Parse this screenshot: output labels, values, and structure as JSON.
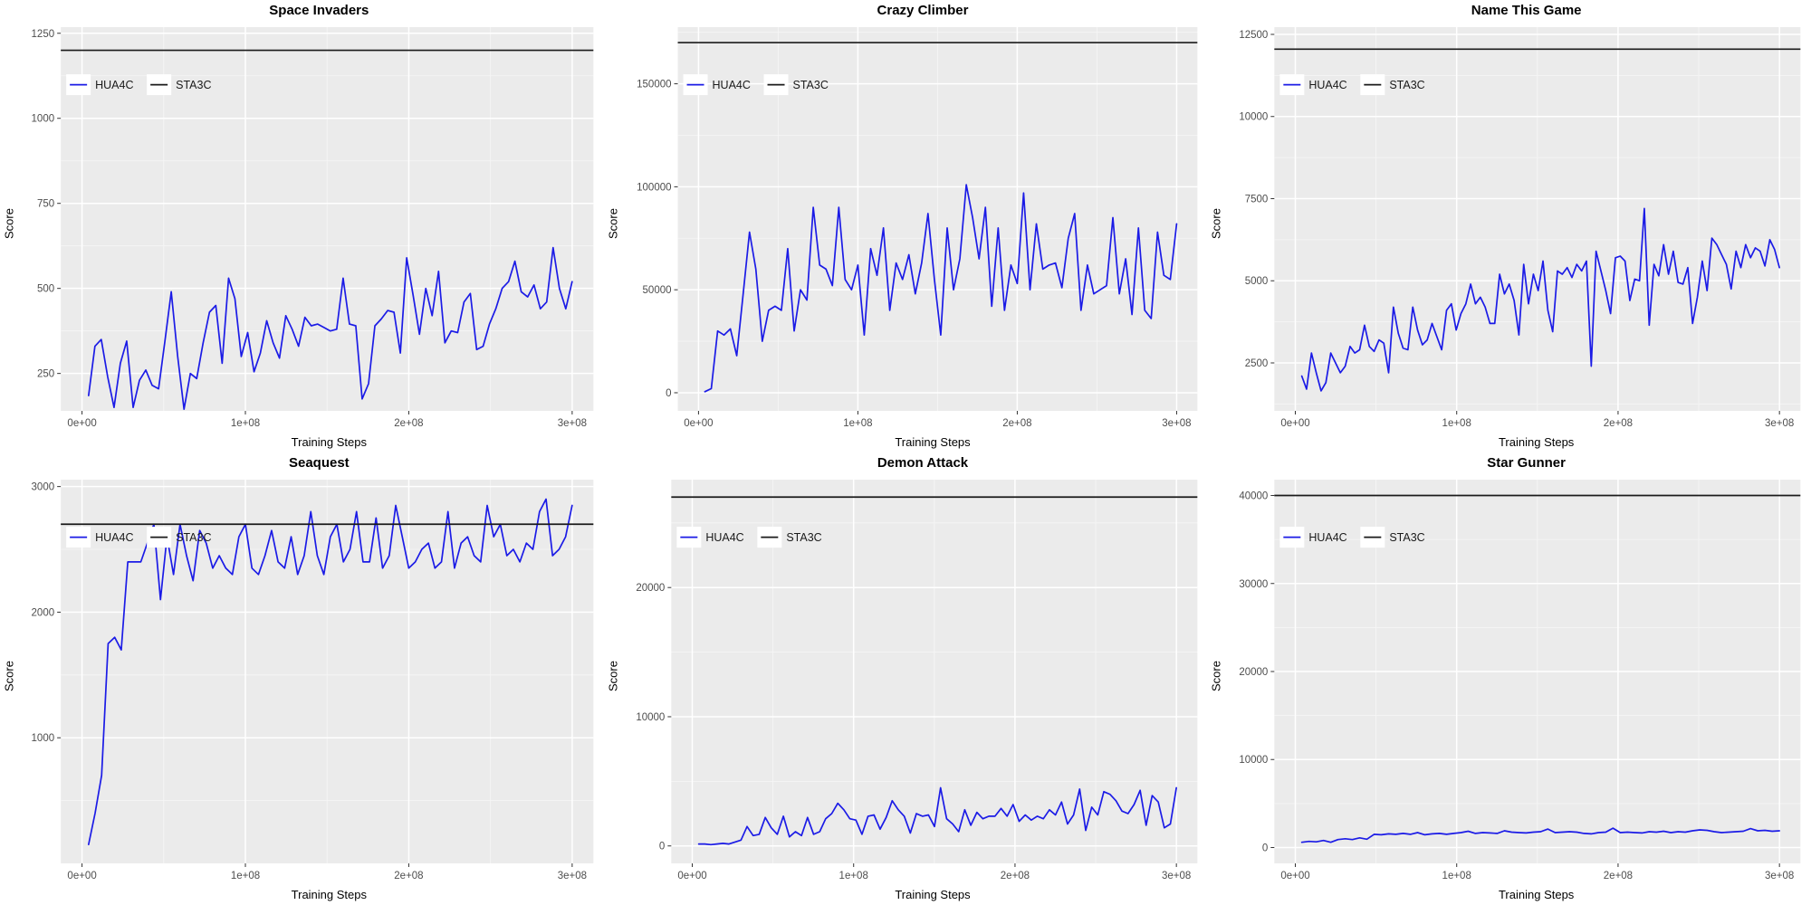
{
  "ui": {
    "x_axis_label": "Training Steps",
    "y_axis_label": "Score",
    "x_tick_values": [
      0,
      100000000,
      200000000,
      300000000
    ],
    "x_tick_labels": [
      "0e+00",
      "1e+08",
      "2e+08",
      "3e+08"
    ],
    "xlim": [
      -13000000,
      313000000
    ],
    "legend": [
      {
        "label": "HUA4C",
        "color": "#1b1be6"
      },
      {
        "label": "STA3C",
        "color": "#1a1a1a"
      }
    ],
    "colors": {
      "panel_background": "#EBEBEB",
      "grid_major": "#FFFFFF",
      "grid_minor": "#F6F6F6",
      "tick_text": "#4d4d4d",
      "tick_mark": "#333333",
      "hua4c_line": "#1b1be6",
      "sta3c_line": "#1a1a1a",
      "legend_key_fill": "#FFFFFF"
    }
  },
  "chart_data": [
    {
      "type": "line",
      "title": "Space Invaders",
      "xlabel": "Training Steps",
      "ylabel": "Score",
      "legend_position": "inside-top-left",
      "grid": true,
      "xlim": [
        -13000000,
        313000000
      ],
      "ylim": [
        140,
        1268
      ],
      "y_ticks": [
        250,
        500,
        750,
        1000,
        1250
      ],
      "y_tick_labels": [
        "250",
        "500",
        "750",
        "1000",
        "1250"
      ],
      "series": [
        {
          "name": "HUA4C",
          "kind": "curve",
          "x_start": 4000000,
          "x_end": 300000000,
          "values": [
            185,
            330,
            350,
            240,
            150,
            280,
            345,
            150,
            230,
            260,
            215,
            205,
            345,
            490,
            300,
            145,
            250,
            235,
            340,
            430,
            450,
            280,
            530,
            470,
            300,
            370,
            255,
            310,
            405,
            340,
            295,
            420,
            380,
            330,
            415,
            390,
            395,
            385,
            375,
            380,
            530,
            395,
            390,
            175,
            220,
            390,
            410,
            435,
            430,
            310,
            590,
            480,
            365,
            500,
            420,
            550,
            340,
            375,
            370,
            460,
            485,
            320,
            330,
            395,
            440,
            500,
            520,
            580,
            490,
            475,
            510,
            440,
            460,
            620,
            500,
            440,
            520
          ]
        },
        {
          "name": "STA3C",
          "kind": "baseline",
          "baseline": 1200
        }
      ]
    },
    {
      "type": "line",
      "title": "Crazy Climber",
      "xlabel": "Training Steps",
      "ylabel": "Score",
      "legend_position": "inside-top-left",
      "grid": true,
      "xlim": [
        -13000000,
        313000000
      ],
      "ylim": [
        -8800,
        177500
      ],
      "y_ticks": [
        0,
        50000,
        100000,
        150000
      ],
      "y_tick_labels": [
        "0",
        "50000",
        "100000",
        "150000"
      ],
      "series": [
        {
          "name": "HUA4C",
          "kind": "curve",
          "x_start": 4000000,
          "x_end": 300000000,
          "values": [
            500,
            2000,
            30000,
            28000,
            31000,
            18000,
            48000,
            78000,
            60000,
            25000,
            40000,
            42000,
            40000,
            70000,
            30000,
            50000,
            45000,
            90000,
            62000,
            60000,
            52000,
            90000,
            55000,
            50000,
            62000,
            28000,
            70000,
            57000,
            80000,
            40000,
            63000,
            55000,
            67000,
            48000,
            63000,
            87000,
            55000,
            28000,
            80000,
            50000,
            65000,
            101000,
            85000,
            65000,
            90000,
            42000,
            80000,
            40000,
            62000,
            53000,
            97000,
            50000,
            82000,
            60000,
            62000,
            63000,
            51000,
            75000,
            87000,
            40000,
            62000,
            48000,
            50000,
            52000,
            85000,
            48000,
            65000,
            38000,
            80000,
            40000,
            36000,
            78000,
            57000,
            55000,
            82000
          ]
        },
        {
          "name": "STA3C",
          "kind": "baseline",
          "baseline": 170000
        }
      ]
    },
    {
      "type": "line",
      "title": "Name This Game",
      "xlabel": "Training Steps",
      "ylabel": "Score",
      "legend_position": "inside-top-left",
      "grid": true,
      "xlim": [
        -13000000,
        313000000
      ],
      "ylim": [
        1040,
        12720
      ],
      "y_ticks": [
        2500,
        5000,
        7500,
        10000,
        12500
      ],
      "y_tick_labels": [
        "2500",
        "5000",
        "7500",
        "10000",
        "12500"
      ],
      "series": [
        {
          "name": "HUA4C",
          "kind": "curve",
          "x_start": 4000000,
          "x_end": 300000000,
          "values": [
            2100,
            1700,
            2800,
            2200,
            1650,
            1900,
            2800,
            2500,
            2200,
            2400,
            3000,
            2800,
            2900,
            3650,
            3000,
            2850,
            3200,
            3100,
            2200,
            4200,
            3400,
            2950,
            2900,
            4200,
            3500,
            3050,
            3200,
            3700,
            3300,
            2900,
            4100,
            4300,
            3500,
            4000,
            4300,
            4900,
            4300,
            4500,
            4200,
            3700,
            3700,
            5200,
            4600,
            4900,
            4400,
            3350,
            5500,
            4300,
            5200,
            4700,
            5600,
            4100,
            3450,
            5300,
            5200,
            5400,
            5100,
            5500,
            5300,
            5600,
            2400,
            5900,
            5300,
            4700,
            4000,
            5700,
            5750,
            5600,
            4400,
            5050,
            5000,
            7200,
            3650,
            5500,
            5150,
            6100,
            5200,
            5900,
            4950,
            4900,
            5400,
            3700,
            4500,
            5600,
            4700,
            6300,
            6100,
            5800,
            5500,
            4750,
            5900,
            5400,
            6100,
            5700,
            6000,
            5900,
            5450,
            6250,
            5950,
            5400
          ]
        },
        {
          "name": "STA3C",
          "kind": "baseline",
          "baseline": 12050
        }
      ]
    },
    {
      "type": "line",
      "title": "Seaquest",
      "xlabel": "Training Steps",
      "ylabel": "Score",
      "legend_position": "inside-top-left",
      "grid": true,
      "xlim": [
        -13000000,
        313000000
      ],
      "ylim": [
        0,
        3055
      ],
      "y_ticks": [
        1000,
        2000,
        3000
      ],
      "y_tick_labels": [
        "1000",
        "2000",
        "3000"
      ],
      "series": [
        {
          "name": "HUA4C",
          "kind": "curve",
          "x_start": 4000000,
          "x_end": 300000000,
          "values": [
            150,
            400,
            700,
            1750,
            1800,
            1700,
            2400,
            2400,
            2400,
            2550,
            2700,
            2100,
            2600,
            2300,
            2700,
            2450,
            2250,
            2650,
            2550,
            2350,
            2450,
            2350,
            2300,
            2600,
            2700,
            2350,
            2300,
            2450,
            2650,
            2400,
            2350,
            2600,
            2300,
            2450,
            2800,
            2450,
            2300,
            2600,
            2700,
            2400,
            2500,
            2800,
            2400,
            2400,
            2750,
            2350,
            2450,
            2850,
            2600,
            2350,
            2400,
            2500,
            2550,
            2350,
            2400,
            2800,
            2350,
            2550,
            2600,
            2450,
            2400,
            2850,
            2600,
            2700,
            2450,
            2500,
            2400,
            2550,
            2500,
            2800,
            2900,
            2450,
            2500,
            2600,
            2850
          ]
        },
        {
          "name": "STA3C",
          "kind": "baseline",
          "baseline": 2700
        }
      ]
    },
    {
      "type": "line",
      "title": "Demon Attack",
      "xlabel": "Training Steps",
      "ylabel": "Score",
      "legend_position": "inside-top-left",
      "grid": true,
      "xlim": [
        -13000000,
        313000000
      ],
      "ylim": [
        -1350,
        28350
      ],
      "y_ticks": [
        0,
        10000,
        20000
      ],
      "y_tick_labels": [
        "0",
        "10000",
        "20000"
      ],
      "series": [
        {
          "name": "HUA4C",
          "kind": "curve",
          "x_start": 4000000,
          "x_end": 300000000,
          "values": [
            150,
            150,
            100,
            150,
            200,
            150,
            300,
            450,
            1500,
            800,
            900,
            2200,
            1400,
            900,
            2300,
            700,
            1100,
            800,
            2200,
            900,
            1100,
            2100,
            2500,
            3300,
            2800,
            2100,
            2000,
            900,
            2300,
            2400,
            1300,
            2200,
            3500,
            2800,
            2300,
            1000,
            2500,
            2300,
            2400,
            1500,
            4500,
            2100,
            1700,
            1100,
            2800,
            1600,
            2600,
            2100,
            2300,
            2300,
            2900,
            2300,
            3200,
            1900,
            2400,
            2000,
            2300,
            2100,
            2800,
            2400,
            3400,
            1700,
            2400,
            4400,
            1200,
            3000,
            2400,
            4200,
            4000,
            3500,
            2700,
            2500,
            3200,
            4300,
            1600,
            3900,
            3400,
            1400,
            1700,
            4500
          ]
        },
        {
          "name": "STA3C",
          "kind": "baseline",
          "baseline": 27000
        }
      ]
    },
    {
      "type": "line",
      "title": "Star Gunner",
      "xlabel": "Training Steps",
      "ylabel": "Score",
      "legend_position": "inside-top-left",
      "grid": true,
      "xlim": [
        -13000000,
        313000000
      ],
      "ylim": [
        -1800,
        41800
      ],
      "y_ticks": [
        0,
        10000,
        20000,
        30000,
        40000
      ],
      "y_tick_labels": [
        "0",
        "10000",
        "20000",
        "30000",
        "40000"
      ],
      "series": [
        {
          "name": "HUA4C",
          "kind": "curve",
          "x_start": 4000000,
          "x_end": 300000000,
          "values": [
            600,
            700,
            650,
            800,
            600,
            900,
            1000,
            900,
            1100,
            950,
            1500,
            1450,
            1550,
            1500,
            1600,
            1500,
            1700,
            1450,
            1550,
            1600,
            1500,
            1600,
            1700,
            1850,
            1600,
            1700,
            1650,
            1600,
            1900,
            1750,
            1700,
            1650,
            1750,
            1800,
            2100,
            1700,
            1750,
            1800,
            1750,
            1600,
            1550,
            1700,
            1750,
            2200,
            1700,
            1750,
            1700,
            1650,
            1800,
            1750,
            1850,
            1700,
            1800,
            1750,
            1900,
            2000,
            1950,
            1800,
            1700,
            1750,
            1800,
            1850,
            2150,
            1900,
            1950,
            1850,
            1900
          ]
        },
        {
          "name": "STA3C",
          "kind": "baseline",
          "baseline": 40000
        }
      ]
    }
  ]
}
